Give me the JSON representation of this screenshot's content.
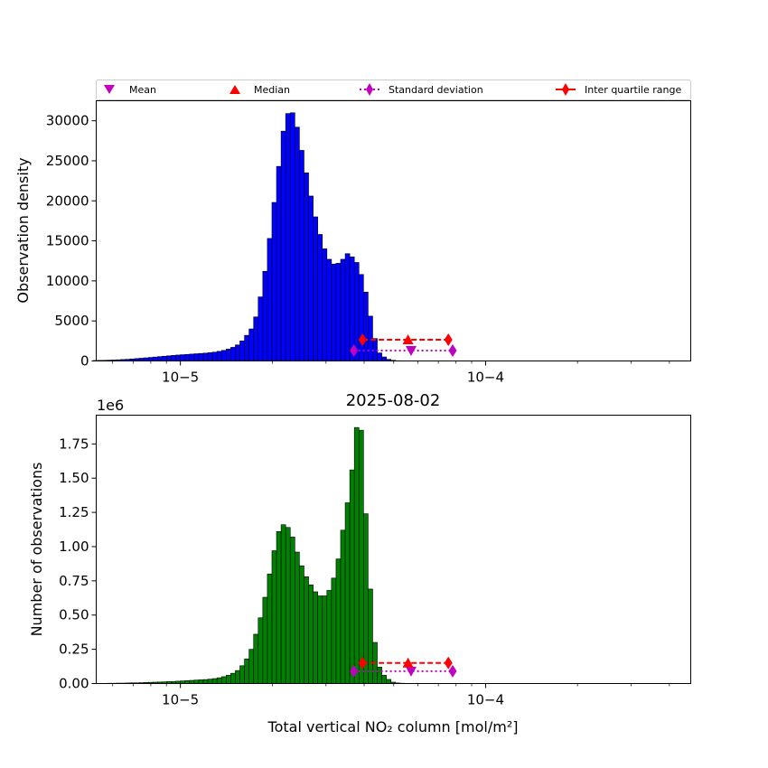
{
  "chart_data": [
    {
      "type": "bar",
      "name": "density-histogram",
      "title": "",
      "xlabel": "",
      "ylabel": "Observation density",
      "xscale": "log",
      "xlim": [
        5.3e-06,
        0.00047
      ],
      "ylim": [
        0,
        32500
      ],
      "yticks": [
        0,
        5000,
        10000,
        15000,
        20000,
        25000,
        30000
      ],
      "ytick_labels": [
        "0",
        "5000",
        "10000",
        "15000",
        "20000",
        "25000",
        "30000"
      ],
      "xtick_labels": [
        "10−5",
        "10−4"
      ],
      "bar_color": "#0000ff",
      "bins": {
        "log10_start": -5.3,
        "log10_end": -3.8,
        "count": 100
      },
      "values": [
        0,
        60,
        70,
        80,
        100,
        120,
        150,
        180,
        210,
        250,
        300,
        340,
        390,
        440,
        490,
        540,
        590,
        640,
        690,
        740,
        780,
        820,
        860,
        900,
        940,
        980,
        1040,
        1100,
        1200,
        1320,
        1480,
        1700,
        2000,
        2500,
        3200,
        4000,
        5500,
        8000,
        11200,
        15300,
        19800,
        24300,
        28700,
        30900,
        31000,
        29200,
        26300,
        23500,
        20600,
        18000,
        15800,
        14000,
        12700,
        12100,
        12200,
        12700,
        13400,
        13000,
        12300,
        10800,
        8600,
        5600,
        2800,
        1000,
        500,
        200,
        80,
        30,
        10,
        0,
        0,
        0,
        0,
        0,
        0,
        0,
        0,
        0,
        0,
        0,
        0,
        0,
        0,
        0,
        0,
        0,
        0,
        0,
        0,
        0,
        0,
        0,
        0,
        0,
        0,
        0,
        0,
        0,
        0,
        0
      ],
      "markers": {
        "mean": {
          "x": 5.7e-05,
          "y": 1300
        },
        "median": {
          "x": 5.57e-05,
          "y": 2650
        },
        "std": {
          "x": [
            3.7e-05,
            7.8e-05
          ],
          "y": 1300
        },
        "iqr": {
          "x": [
            3.95e-05,
            7.55e-05
          ],
          "y": 2650
        }
      },
      "legend": {
        "location": "top",
        "entries": [
          {
            "label": "Mean",
            "marker": "triangle-down",
            "color": "#bf00bf"
          },
          {
            "label": "Median",
            "marker": "triangle-up",
            "color": "#ff0000"
          },
          {
            "label": "Standard deviation",
            "marker": "diamond-dotted-line",
            "color": "#bf00bf"
          },
          {
            "label": "Inter quartile range",
            "marker": "diamond-line",
            "color": "#ff0000"
          }
        ]
      }
    },
    {
      "type": "bar",
      "name": "count-histogram",
      "title": "2025-08-02",
      "xlabel": "Total vertical NO₂ column [mol/m²]",
      "ylabel": "Number of observations",
      "y_offset_label": "1e6",
      "xscale": "log",
      "xlim": [
        5.3e-06,
        0.00047
      ],
      "ylim": [
        0,
        1.96
      ],
      "yticks": [
        0,
        0.25,
        0.5,
        0.75,
        1.0,
        1.25,
        1.5,
        1.75
      ],
      "ytick_labels": [
        "0.00",
        "0.25",
        "0.50",
        "0.75",
        "1.00",
        "1.25",
        "1.50",
        "1.75"
      ],
      "xtick_labels": [
        "10−5",
        "10−4"
      ],
      "bar_color": "#008000",
      "bins": {
        "log10_start": -5.3,
        "log10_end": -3.8,
        "count": 100
      },
      "values": [
        0,
        0.001,
        0.001,
        0.001,
        0.002,
        0.002,
        0.003,
        0.003,
        0.004,
        0.005,
        0.005,
        0.006,
        0.008,
        0.009,
        0.01,
        0.011,
        0.012,
        0.014,
        0.015,
        0.017,
        0.019,
        0.021,
        0.023,
        0.025,
        0.027,
        0.029,
        0.032,
        0.036,
        0.042,
        0.05,
        0.06,
        0.075,
        0.095,
        0.13,
        0.18,
        0.25,
        0.36,
        0.48,
        0.63,
        0.8,
        0.97,
        1.11,
        1.16,
        1.14,
        1.07,
        0.96,
        0.86,
        0.78,
        0.72,
        0.67,
        0.64,
        0.64,
        0.68,
        0.77,
        0.91,
        1.12,
        1.32,
        1.56,
        1.87,
        1.85,
        1.24,
        0.69,
        0.3,
        0.12,
        0.06,
        0.03,
        0.01,
        0.004,
        0.002,
        0,
        0,
        0,
        0,
        0,
        0,
        0,
        0,
        0,
        0,
        0,
        0,
        0,
        0,
        0,
        0,
        0,
        0,
        0,
        0,
        0,
        0,
        0,
        0,
        0,
        0,
        0,
        0,
        0,
        0,
        0
      ],
      "markers": {
        "mean": {
          "x": 5.7e-05,
          "y": 0.09
        },
        "median": {
          "x": 5.57e-05,
          "y": 0.15
        },
        "std": {
          "x": [
            3.7e-05,
            7.8e-05
          ],
          "y": 0.09
        },
        "iqr": {
          "x": [
            3.95e-05,
            7.55e-05
          ],
          "y": 0.15
        }
      }
    }
  ]
}
